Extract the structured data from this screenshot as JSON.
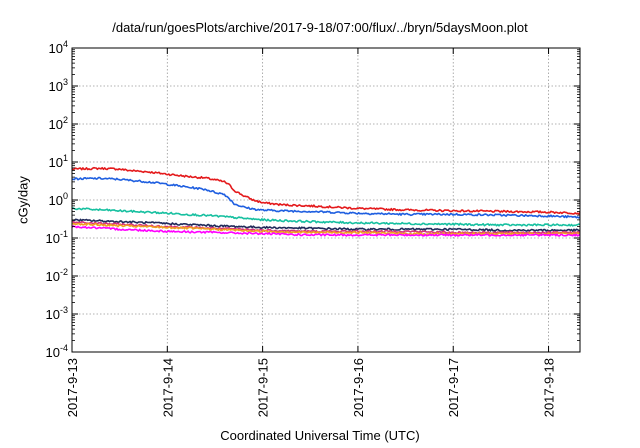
{
  "chart_data": {
    "type": "line",
    "title": "/data/run/goesPlots/archive/2017-9-18/07:00/flux/../bryn/5daysMoon.plot",
    "xlabel": "Coordinated Universal Time (UTC)",
    "ylabel": "cGy/day",
    "yscale": "log",
    "ylim": [
      0.0001,
      10000
    ],
    "xlim": [
      0,
      5.33
    ],
    "grid": true,
    "x_ticks": [
      {
        "value": 0,
        "label": "2017-9-13"
      },
      {
        "value": 1,
        "label": "2017-9-14"
      },
      {
        "value": 2,
        "label": "2017-9-15"
      },
      {
        "value": 3,
        "label": "2017-9-16"
      },
      {
        "value": 4,
        "label": "2017-9-17"
      },
      {
        "value": 5,
        "label": "2017-9-18"
      }
    ],
    "y_ticks": [
      {
        "value": 0.0001,
        "base": "10",
        "exp": "-4"
      },
      {
        "value": 0.001,
        "base": "10",
        "exp": "-3"
      },
      {
        "value": 0.01,
        "base": "10",
        "exp": "-2"
      },
      {
        "value": 0.1,
        "base": "10",
        "exp": "-1"
      },
      {
        "value": 1,
        "base": "10",
        "exp": "0"
      },
      {
        "value": 10,
        "base": "10",
        "exp": "1"
      },
      {
        "value": 100,
        "base": "10",
        "exp": "2"
      },
      {
        "value": 1000,
        "base": "10",
        "exp": "3"
      },
      {
        "value": 10000,
        "base": "10",
        "exp": "4"
      }
    ],
    "series": [
      {
        "color": "#e41a1c",
        "x": [
          0,
          0.3,
          0.5,
          0.6,
          0.8,
          1.0,
          1.2,
          1.4,
          1.5,
          1.6,
          1.65,
          1.7,
          1.8,
          1.9,
          2.0,
          2.2,
          2.5,
          3.0,
          3.5,
          4.0,
          4.5,
          5.0,
          5.33
        ],
        "y": [
          6.5,
          6.8,
          6.5,
          6.0,
          5.5,
          4.8,
          4.2,
          3.8,
          3.4,
          3.0,
          2.5,
          1.8,
          1.3,
          1.0,
          0.85,
          0.75,
          0.7,
          0.6,
          0.55,
          0.52,
          0.5,
          0.48,
          0.45
        ]
      },
      {
        "color": "#1f5fe0",
        "x": [
          0,
          0.3,
          0.5,
          0.6,
          0.8,
          1.0,
          1.2,
          1.4,
          1.5,
          1.6,
          1.65,
          1.7,
          1.8,
          1.9,
          2.0,
          2.2,
          2.5,
          3.0,
          3.5,
          4.0,
          4.5,
          5.0,
          5.33
        ],
        "y": [
          3.6,
          3.7,
          3.5,
          3.3,
          3.0,
          2.6,
          2.2,
          1.9,
          1.6,
          1.4,
          1.1,
          0.8,
          0.65,
          0.58,
          0.54,
          0.52,
          0.5,
          0.45,
          0.42,
          0.42,
          0.4,
          0.38,
          0.35
        ]
      },
      {
        "color": "#17c0a0",
        "x": [
          0,
          0.5,
          1.0,
          1.5,
          2.0,
          2.5,
          3.0,
          3.5,
          4.0,
          4.5,
          5.0,
          5.33
        ],
        "y": [
          0.6,
          0.52,
          0.45,
          0.38,
          0.3,
          0.27,
          0.25,
          0.24,
          0.23,
          0.22,
          0.22,
          0.22
        ]
      },
      {
        "color": "#202a5a",
        "x": [
          0,
          0.5,
          1.0,
          1.5,
          2.0,
          2.5,
          3.0,
          3.5,
          4.0,
          4.5,
          5.0,
          5.33
        ],
        "y": [
          0.3,
          0.27,
          0.24,
          0.21,
          0.19,
          0.18,
          0.17,
          0.17,
          0.17,
          0.16,
          0.16,
          0.16
        ]
      },
      {
        "color": "#d6317c",
        "x": [
          0,
          0.5,
          1.0,
          1.5,
          2.0,
          2.5,
          3.0,
          3.5,
          4.0,
          4.5,
          5.0,
          5.33
        ],
        "y": [
          0.26,
          0.23,
          0.2,
          0.18,
          0.16,
          0.15,
          0.15,
          0.15,
          0.14,
          0.14,
          0.14,
          0.14
        ]
      },
      {
        "color": "#f0a020",
        "x": [
          0,
          0.5,
          1.0,
          1.5,
          2.0,
          2.5,
          3.0,
          3.5,
          4.0,
          4.5,
          5.0,
          5.33
        ],
        "y": [
          0.24,
          0.21,
          0.19,
          0.17,
          0.15,
          0.14,
          0.14,
          0.13,
          0.13,
          0.13,
          0.13,
          0.13
        ]
      },
      {
        "color": "#ff00ff",
        "x": [
          0,
          0.5,
          1.0,
          1.5,
          2.0,
          2.5,
          3.0,
          3.5,
          4.0,
          4.5,
          5.0,
          5.33
        ],
        "y": [
          0.2,
          0.17,
          0.15,
          0.14,
          0.13,
          0.12,
          0.12,
          0.12,
          0.12,
          0.12,
          0.12,
          0.12
        ]
      }
    ]
  }
}
